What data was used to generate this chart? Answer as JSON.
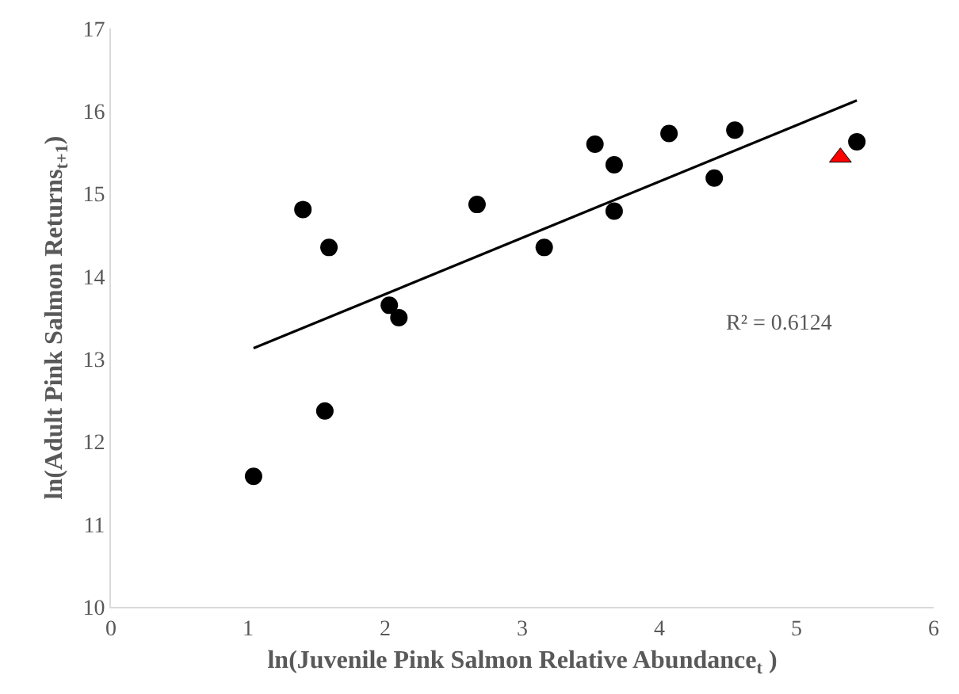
{
  "chart_data": {
    "type": "scatter",
    "xlabel": "ln(Juvenile Pink Salmon Relative Abundance$_{t}$ )",
    "ylabel": "ln(Adult Pink Salmon Returns$_{t+1}$)",
    "xlim": [
      0,
      6
    ],
    "xticks": [
      0,
      1,
      2,
      3,
      4,
      5,
      6
    ],
    "ylim": [
      10,
      17
    ],
    "yticks": [
      10,
      11,
      12,
      13,
      14,
      15,
      16,
      17
    ],
    "grid": false,
    "legend": false,
    "annotations": [
      "R² = 0.6124"
    ],
    "series": [
      {
        "marker": "circle",
        "color": "#000000",
        "x": [
          1.04,
          1.56,
          1.4,
          1.59,
          2.03,
          2.1,
          2.67,
          3.16,
          3.53,
          3.67,
          3.67,
          4.07,
          4.4,
          4.55,
          5.44
        ],
        "values": [
          11.58,
          12.37,
          14.81,
          14.35,
          13.65,
          13.5,
          14.87,
          14.35,
          15.6,
          15.35,
          14.79,
          15.73,
          15.19,
          15.77,
          15.63
        ]
      },
      {
        "type": "scatter",
        "marker": "triangle",
        "color": "#ff0000",
        "x": [
          5.32
        ],
        "values": [
          15.44
        ]
      },
      {
        "type": "line",
        "marker": "none",
        "line_style": "solid",
        "color": "#000000",
        "x": [
          1.04,
          5.44
        ],
        "values": [
          13.13,
          16.13
        ]
      }
    ]
  }
}
